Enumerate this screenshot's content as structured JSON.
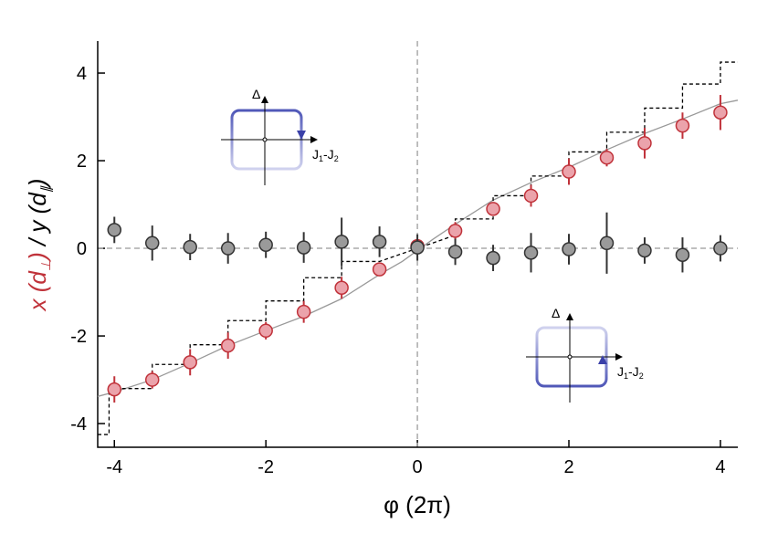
{
  "chart_data": {
    "type": "scatter",
    "x_label": "φ (2π)",
    "y_label_parts": [
      "x (d",
      "⊥",
      ")",
      " / y (d",
      "∥",
      ")"
    ],
    "xlim": [
      -4.22,
      4.23
    ],
    "ylim": [
      -4.54,
      4.73
    ],
    "xticks": [
      -4,
      -2,
      0,
      2,
      4
    ],
    "yticks": [
      -4,
      -2,
      0,
      2,
      4
    ],
    "series": [
      {
        "name": "x",
        "color": "#c0323a",
        "fill": "#eba3ab",
        "x": [
          -4,
          -3.5,
          -3,
          -2.5,
          -2,
          -1.5,
          -1,
          -0.5,
          0,
          0.5,
          1,
          1.5,
          2,
          2.5,
          3,
          3.5,
          4
        ],
        "values": [
          -3.22,
          -3.0,
          -2.6,
          -2.22,
          -1.88,
          -1.45,
          -0.9,
          -0.48,
          0.05,
          0.4,
          0.9,
          1.2,
          1.75,
          2.07,
          2.4,
          2.8,
          3.1
        ],
        "errors": [
          0.3,
          0.2,
          0.3,
          0.3,
          0.2,
          0.25,
          0.25,
          0.15,
          0.15,
          0.2,
          0.15,
          0.25,
          0.3,
          0.2,
          0.35,
          0.3,
          0.4
        ]
      },
      {
        "name": "y",
        "color": "#333333",
        "fill": "#9a9a9a",
        "x": [
          -4,
          -3.5,
          -3,
          -2.5,
          -2,
          -1.5,
          -1,
          -0.5,
          0,
          0.5,
          1,
          1.5,
          2,
          2.5,
          3,
          3.5,
          4
        ],
        "values": [
          0.42,
          0.12,
          0.03,
          0.0,
          0.08,
          0.02,
          0.15,
          0.15,
          0.02,
          -0.08,
          -0.22,
          -0.1,
          -0.02,
          0.12,
          -0.05,
          -0.15,
          0.0
        ],
        "errors": [
          0.3,
          0.4,
          0.3,
          0.35,
          0.3,
          0.35,
          0.55,
          0.35,
          0.3,
          0.3,
          0.3,
          0.45,
          0.35,
          0.7,
          0.3,
          0.4,
          0.3
        ]
      }
    ],
    "lines": [
      {
        "color": "#999999",
        "dash": false,
        "x": [
          -4.22,
          -4,
          -3.5,
          -3,
          -2.5,
          -2,
          -1.5,
          -1,
          -0.5,
          -0.2,
          0,
          0.2,
          0.5,
          1,
          1.5,
          2,
          2.5,
          3,
          3.5,
          4,
          4.23
        ],
        "values": [
          -3.38,
          -3.28,
          -3.0,
          -2.62,
          -2.22,
          -1.88,
          -1.55,
          -1.15,
          -0.6,
          -0.3,
          -0.05,
          0.2,
          0.55,
          1.1,
          1.5,
          1.85,
          2.25,
          2.62,
          2.95,
          3.3,
          3.38
        ]
      },
      {
        "color": "#000000",
        "dash": true,
        "x": [
          -4.22,
          -4.07,
          -4.07,
          -3.5,
          -3.5,
          -3,
          -3,
          -2.5,
          -2.5,
          -2,
          -2,
          -1.5,
          -1.5,
          -1,
          -1,
          -0.5,
          -0.5,
          0.5,
          0.5,
          1,
          1,
          1.5,
          1.5,
          2,
          2,
          2.5,
          2.5,
          3,
          3,
          3.5,
          3.5,
          4,
          4,
          4.23
        ],
        "values": [
          -4.25,
          -4.25,
          -3.2,
          -3.2,
          -2.65,
          -2.65,
          -2.2,
          -2.2,
          -1.65,
          -1.65,
          -1.2,
          -1.2,
          -0.67,
          -0.67,
          -0.3,
          -0.3,
          -0.3,
          0.3,
          0.67,
          0.67,
          1.2,
          1.2,
          1.65,
          1.65,
          2.2,
          2.2,
          2.65,
          2.65,
          3.2,
          3.2,
          3.75,
          3.75,
          4.25,
          4.25
        ]
      }
    ],
    "insets": [
      {
        "y_label": "Δ",
        "x_label_parts": [
          "J",
          "1",
          "-J",
          "2"
        ]
      },
      {
        "y_label": "Δ",
        "x_label_parts": [
          "J",
          "1",
          "-J",
          "2"
        ]
      }
    ]
  }
}
